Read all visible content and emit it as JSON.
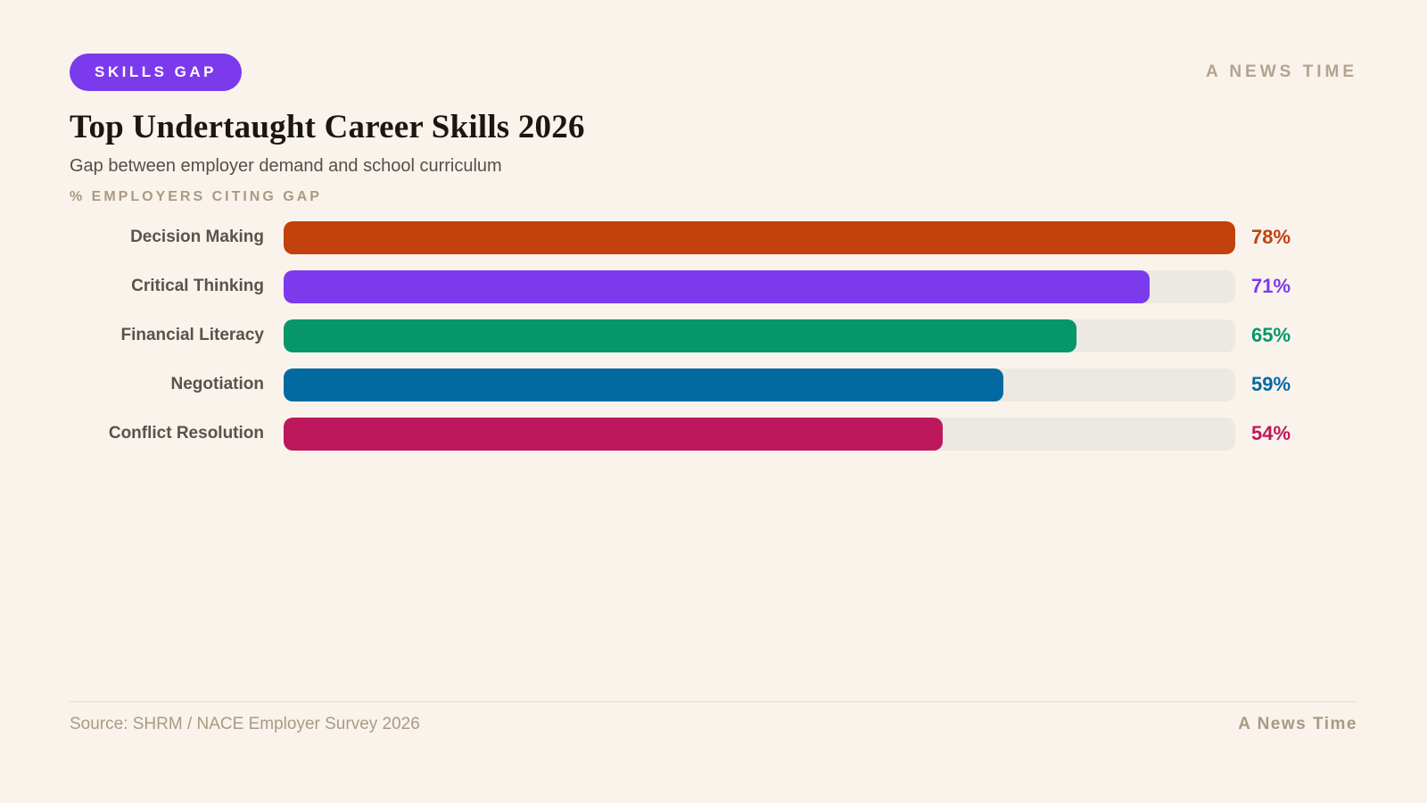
{
  "page": {
    "background": "#faf3ec"
  },
  "header": {
    "badge": "SKILLS GAP",
    "badge_color": "#7c3aed",
    "brand": "A NEWS TIME"
  },
  "title": "Top Undertaught Career Skills 2026",
  "subtitle": "Gap between employer demand and school curriculum",
  "axis_label": "% EMPLOYERS CITING GAP",
  "chart_data": {
    "type": "bar",
    "orientation": "horizontal",
    "title": "Top Undertaught Career Skills 2026",
    "subtitle": "Gap between employer demand and school curriculum",
    "ylabel": "% EMPLOYERS CITING GAP",
    "categories": [
      "Decision Making",
      "Critical Thinking",
      "Financial Literacy",
      "Negotiation",
      "Conflict Resolution"
    ],
    "values": [
      78,
      71,
      65,
      59,
      54
    ],
    "value_labels": [
      "78%",
      "71%",
      "65%",
      "59%",
      "54%"
    ],
    "bar_colors": [
      "#c2410c",
      "#7c3aed",
      "#059669",
      "#0369a1",
      "#be185d"
    ],
    "value_label_colors": [
      "#c2410c",
      "#7c3aed",
      "#059669",
      "#0369a1",
      "#be185d"
    ],
    "track_color": "#ece9e2",
    "scale_max": 78,
    "grid": false,
    "legend": false
  },
  "footer": {
    "source": "Source: SHRM / NACE Employer Survey 2026",
    "brand": "A News Time"
  }
}
